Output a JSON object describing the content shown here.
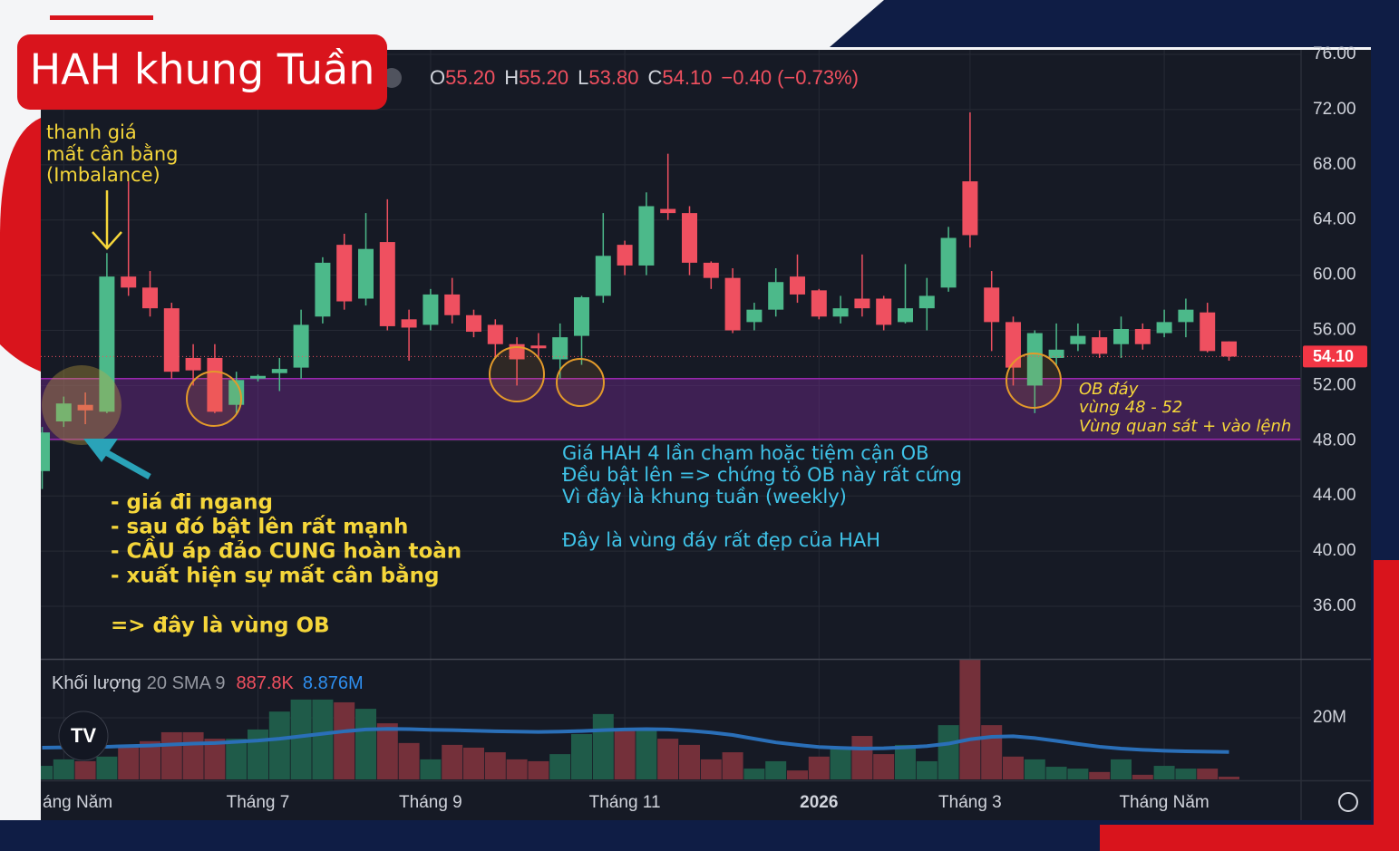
{
  "chart_data": {
    "type": "candlestick",
    "title": "HAH khung Tuần",
    "categories": [
      null,
      "áng Năm",
      null,
      null,
      null,
      null,
      null,
      null,
      null,
      null,
      "Tháng 7",
      null,
      null,
      null,
      null,
      null,
      null,
      null,
      "Tháng 9",
      null,
      null,
      null,
      null,
      null,
      null,
      null,
      null,
      "Tháng 11",
      null,
      null,
      null,
      null,
      null,
      null,
      null,
      null,
      "2026",
      null,
      null,
      null,
      null,
      null,
      null,
      "Tháng 3",
      null,
      null,
      null,
      null,
      null,
      null,
      null,
      null,
      "Tháng Năm",
      null,
      null,
      null
    ],
    "open": [
      45.8,
      49.4,
      50.6,
      50.1,
      59.9,
      59.1,
      57.6,
      54.0,
      54.0,
      50.6,
      52.5,
      52.9,
      53.3,
      57.0,
      62.2,
      58.3,
      62.4,
      56.8,
      56.4,
      58.6,
      57.1,
      56.4,
      55.0,
      54.9,
      53.9,
      55.6,
      58.5,
      62.2,
      60.7,
      64.8,
      64.5,
      60.9,
      59.8,
      56.6,
      57.5,
      59.9,
      58.9,
      57.0,
      58.3,
      58.3,
      56.6,
      57.6,
      59.1,
      66.8,
      59.1,
      56.6,
      52.0,
      54.0,
      55.0,
      55.5,
      55.0,
      56.1,
      55.8,
      56.6,
      57.3,
      55.2
    ],
    "high": [
      49.0,
      51.2,
      51.5,
      61.6,
      66.8,
      60.3,
      58.0,
      55.0,
      55.0,
      53.0,
      52.8,
      54.0,
      57.5,
      61.3,
      63.0,
      64.5,
      65.5,
      57.5,
      59.0,
      59.8,
      57.5,
      56.8,
      55.5,
      55.8,
      56.5,
      58.5,
      64.5,
      62.5,
      66.0,
      68.8,
      65.0,
      61.0,
      60.5,
      58.0,
      60.5,
      61.5,
      59.0,
      58.5,
      61.5,
      58.5,
      60.8,
      59.8,
      63.5,
      71.8,
      60.3,
      57.0,
      56.0,
      56.5,
      56.5,
      56.0,
      57.0,
      56.5,
      57.5,
      58.3,
      58.0,
      55.2
    ],
    "low": [
      44.5,
      49.0,
      49.2,
      50.0,
      58.5,
      57.0,
      52.5,
      52.0,
      50.0,
      50.0,
      52.3,
      51.6,
      52.5,
      56.5,
      57.5,
      57.8,
      56.0,
      53.8,
      56.0,
      56.5,
      55.5,
      54.0,
      52.0,
      54.0,
      52.5,
      53.5,
      58.0,
      60.0,
      60.0,
      64.0,
      60.0,
      59.0,
      55.8,
      56.0,
      57.0,
      58.0,
      56.8,
      56.5,
      57.0,
      56.0,
      56.5,
      56.0,
      58.8,
      62.0,
      54.5,
      52.0,
      50.0,
      53.5,
      54.5,
      54.0,
      54.0,
      54.6,
      55.5,
      55.5,
      54.4,
      53.8
    ],
    "close": [
      48.6,
      50.7,
      50.2,
      59.9,
      59.1,
      57.6,
      53.0,
      53.1,
      50.1,
      52.4,
      52.7,
      53.2,
      56.4,
      60.9,
      58.1,
      61.9,
      56.3,
      56.2,
      58.6,
      57.1,
      55.9,
      55.0,
      53.9,
      54.7,
      55.5,
      58.4,
      61.4,
      60.7,
      65.0,
      64.5,
      60.9,
      59.8,
      56.0,
      57.5,
      59.5,
      58.6,
      57.0,
      57.6,
      57.6,
      56.4,
      57.6,
      58.5,
      62.7,
      62.9,
      56.6,
      53.3,
      55.8,
      54.6,
      55.6,
      54.3,
      56.1,
      55.0,
      56.6,
      57.5,
      54.5,
      54.1
    ],
    "up_color": "#4cb98a",
    "down_color": "#ef5060",
    "ylim": [
      32.19,
      76.33
    ],
    "yticks": [
      {
        "value": 76,
        "label": "76.00"
      },
      {
        "value": 72,
        "label": "72.00"
      },
      {
        "value": 68,
        "label": "68.00"
      },
      {
        "value": 64,
        "label": "64.00"
      },
      {
        "value": 60,
        "label": "60.00"
      },
      {
        "value": 56,
        "label": "56.00"
      },
      {
        "value": 52,
        "label": "52.00"
      },
      {
        "value": 48,
        "label": "48.00"
      },
      {
        "value": 44,
        "label": "44.00"
      },
      {
        "value": 40,
        "label": "40.00"
      },
      {
        "value": 36,
        "label": "36.00"
      }
    ],
    "grid": true,
    "last_price": {
      "value": 54.1,
      "label": "54.10"
    },
    "zone": [
      48.1,
      52.5
    ],
    "legend": [
      {
        "key": "O",
        "value": 55.2,
        "label": "55.20"
      },
      {
        "key": "H",
        "value": 55.2,
        "label": "55.20"
      },
      {
        "key": "L",
        "value": 53.8,
        "label": "53.80"
      },
      {
        "key": "C",
        "value": 54.1,
        "label": "54.10"
      }
    ],
    "change": {
      "value": -0.4,
      "label": "−0.40"
    },
    "change_pct": {
      "value": -0.73,
      "label": "(−0.73%)"
    },
    "volume": {
      "title": "Khối lượng",
      "params": "20 SMA 9",
      "values": [
        4.4,
        6.5,
        5.9,
        7.4,
        10.3,
        12.4,
        15.3,
        15.3,
        13.2,
        13.2,
        16.2,
        22.0,
        25.9,
        25.9,
        25.0,
        22.9,
        18.2,
        11.8,
        6.5,
        11.2,
        10.3,
        8.8,
        6.5,
        5.9,
        8.2,
        14.7,
        21.2,
        16.2,
        16.2,
        13.2,
        11.2,
        6.5,
        8.8,
        3.5,
        5.9,
        2.9,
        7.4,
        10.3,
        14.1,
        8.2,
        11.2,
        5.9,
        17.6,
        45.0,
        17.6,
        7.4,
        6.5,
        4.1,
        3.5,
        2.4,
        6.5,
        1.5,
        4.4,
        3.5,
        3.5,
        0.8878
      ],
      "sma": [
        10.3,
        10.4,
        10.5,
        10.6,
        10.8,
        11.0,
        11.3,
        11.6,
        11.8,
        12.2,
        12.6,
        13.2,
        14.0,
        14.8,
        15.6,
        16.2,
        16.4,
        16.3,
        16.1,
        16.0,
        15.8,
        15.6,
        15.5,
        15.4,
        15.5,
        15.7,
        16.0,
        16.2,
        16.3,
        16.2,
        15.8,
        15.2,
        14.4,
        13.2,
        12.0,
        11.2,
        10.5,
        10.2,
        10.0,
        10.1,
        10.4,
        10.8,
        11.6,
        13.0,
        13.8,
        14.0,
        13.4,
        12.5,
        11.5,
        10.6,
        10.0,
        9.6,
        9.3,
        9.1,
        9.0,
        8.876
      ],
      "value_label": {
        "value": 0.8878,
        "label": "887.8K"
      },
      "sma_label": {
        "value": 8.876,
        "label": "8.876M"
      },
      "ylim": [
        0,
        38.8
      ],
      "yticks": [
        {
          "value": 20,
          "label": "20M"
        }
      ],
      "up_color": "#1f5b49",
      "down_color": "#74303a",
      "sma_color": "#2a6fb8"
    },
    "annotations": {
      "imbalance": [
        "thanh giá",
        "mất cân bằng",
        "(Imbalance)"
      ],
      "bullets": [
        "- giá đi ngang",
        "- sau đó bật lên rất mạnh",
        "- CẦU áp đảo CUNG hoàn toàn",
        "- xuất hiện sự mất cân bằng",
        "=> đây là vùng OB"
      ],
      "notes": [
        "Giá HAH 4 lần chạm hoặc tiệm cận OB",
        "Đều bật lên => chứng tỏ OB này rất cứng",
        "Vì đây là khung tuần (weekly)",
        "Đây là vùng đáy rất đẹp của HAH"
      ],
      "ob": [
        "OB đáy",
        "vùng 48 - 52",
        "Vùng quan sát  + vào lệnh"
      ]
    }
  }
}
